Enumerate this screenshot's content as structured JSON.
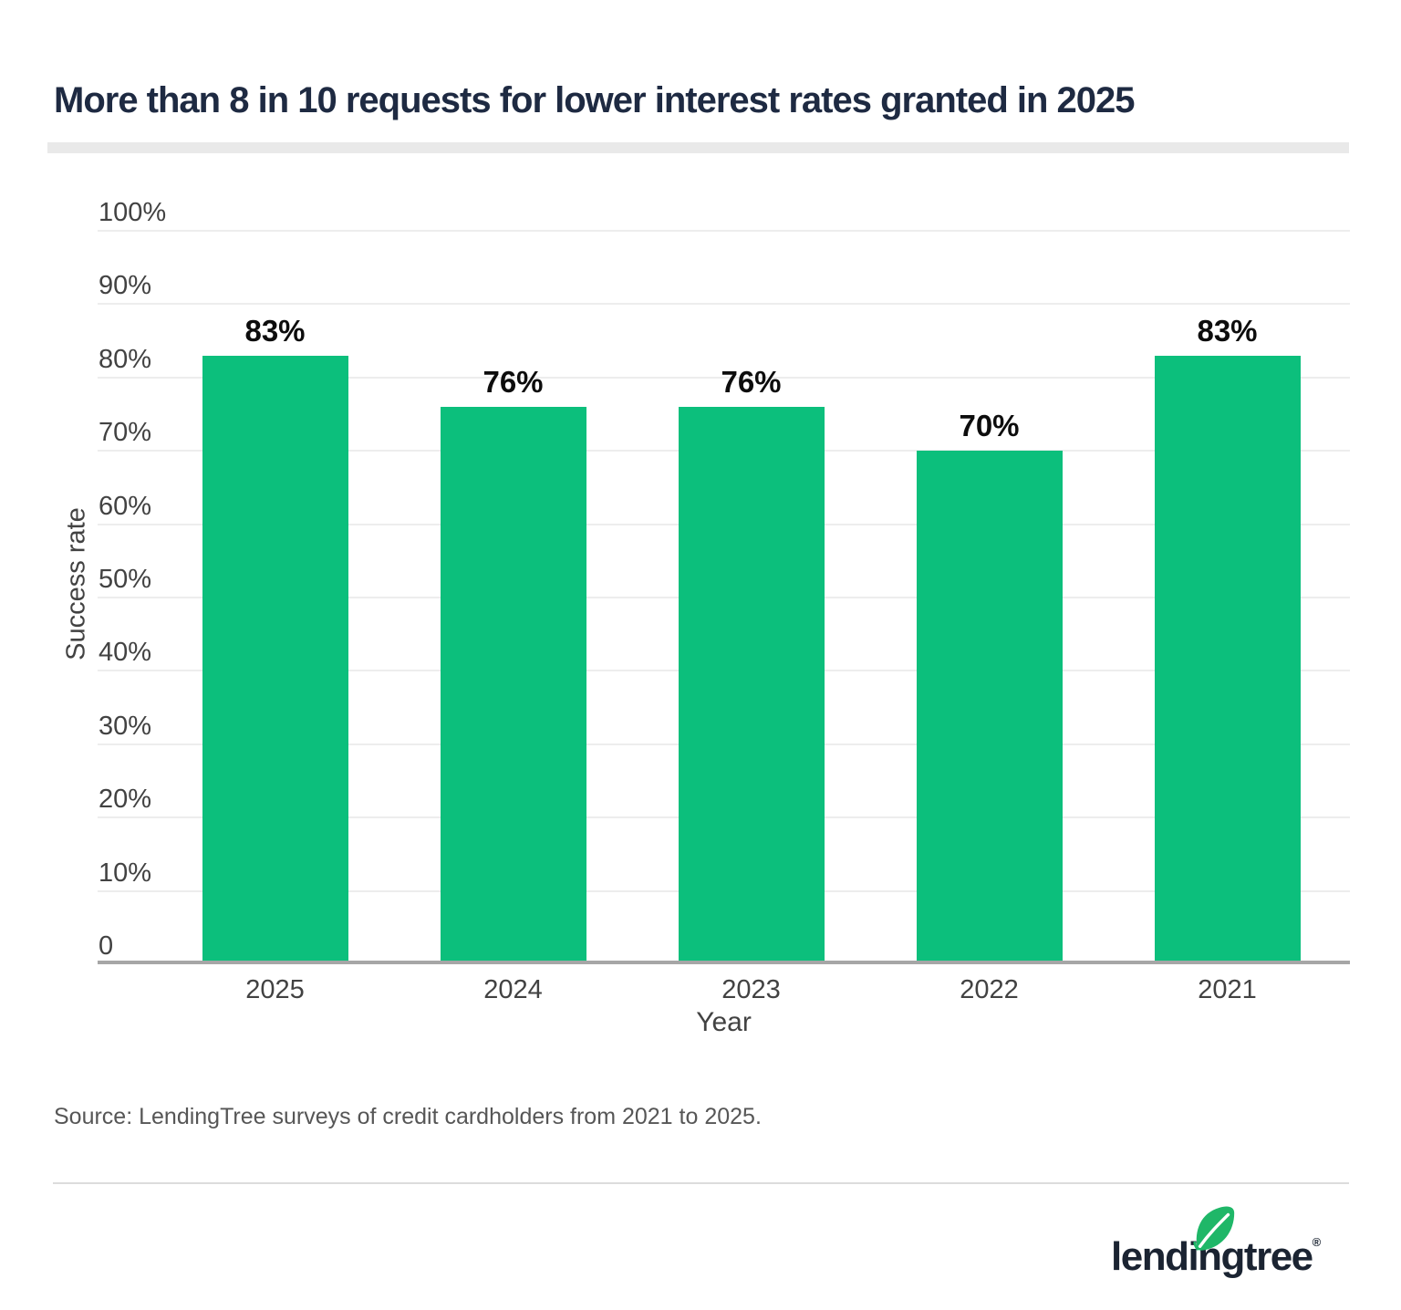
{
  "title": "More than 8 in 10 requests for lower interest rates granted in 2025",
  "chart_data": {
    "type": "bar",
    "categories": [
      "2025",
      "2024",
      "2023",
      "2022",
      "2021"
    ],
    "values": [
      83,
      76,
      76,
      70,
      83
    ],
    "value_labels": [
      "83%",
      "76%",
      "76%",
      "70%",
      "83%"
    ],
    "title": "More than 8 in 10 requests for lower interest rates granted in 2025",
    "xlabel": "Year",
    "ylabel": "Success rate",
    "ylim": [
      0,
      100
    ],
    "ytick_values": [
      100,
      90,
      80,
      70,
      60,
      50,
      40,
      30,
      20,
      10,
      0
    ],
    "ytick_labels": [
      "100%",
      "90%",
      "80%",
      "70%",
      "60%",
      "50%",
      "40%",
      "30%",
      "20%",
      "10%",
      "0"
    ],
    "grid": true,
    "legend_position": "none",
    "bar_color": "#0cbf7c"
  },
  "source_note": "Source: LendingTree surveys of credit cardholders from 2021 to 2025.",
  "footer": {
    "brand": "lendingtree",
    "registered_mark": "®"
  },
  "colors": {
    "bar_green": "#0cbf7c",
    "leaf_green": "#1fb768",
    "title_navy": "#1e2a42",
    "logo_navy": "#1b2432",
    "axis_text_gray": "#424242",
    "value_label_black": "#0d0d0d",
    "gridline_gray": "#ededed",
    "axis_line_gray": "#a6a6a6",
    "source_gray": "#565656",
    "divider_gray": "#e9e9e9"
  }
}
